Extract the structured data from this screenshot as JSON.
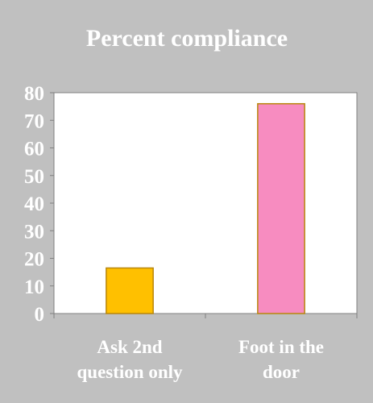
{
  "chart_data": {
    "type": "bar",
    "title": "Percent compliance",
    "xlabel": "",
    "ylabel": "",
    "categories": [
      [
        "Ask 2nd",
        "question only"
      ],
      [
        "Foot in the",
        "door"
      ]
    ],
    "values": [
      16.5,
      76
    ],
    "bar_colors": [
      "#FFC000",
      "#F78CC0"
    ],
    "bar_outline": "#B8860B",
    "ylim": [
      0,
      80
    ],
    "yticks": [
      0,
      10,
      20,
      30,
      40,
      50,
      60,
      70,
      80
    ],
    "grid": false,
    "legend": "none",
    "colors": {
      "background": "#C0C0C0",
      "plot_area": "#FFFFFF",
      "text": "#FFFFFF",
      "axis": "#808080"
    }
  }
}
